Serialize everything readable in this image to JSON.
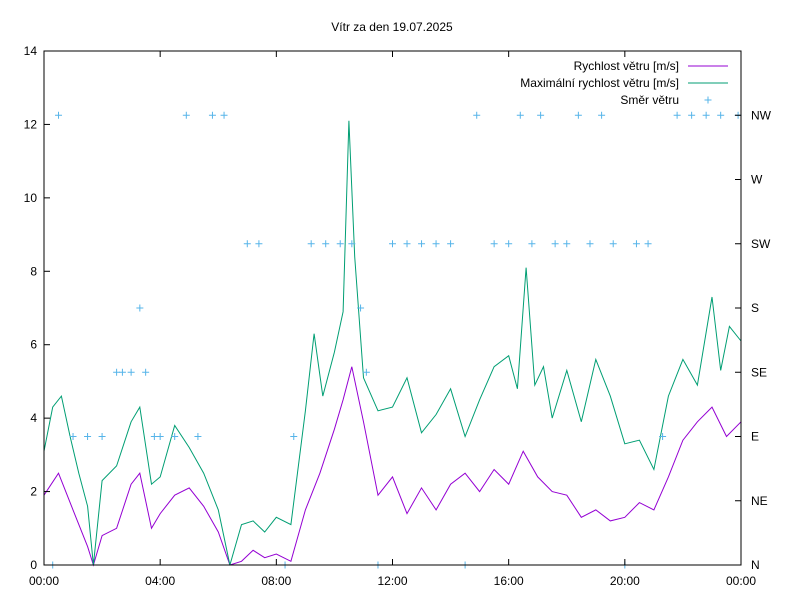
{
  "chart_data": {
    "type": "line",
    "title": "Vítr za den 19.07.2025",
    "xlabel": "",
    "ylabel": "",
    "x_tick_labels": [
      "00:00",
      "04:00",
      "08:00",
      "12:00",
      "16:00",
      "20:00",
      "00:00"
    ],
    "xlim_hours": [
      0,
      24
    ],
    "ylim": [
      0,
      14
    ],
    "y_ticks": [
      0,
      2,
      4,
      6,
      8,
      10,
      12,
      14
    ],
    "y2_tick_labels": [
      "N",
      "NE",
      "E",
      "SE",
      "S",
      "SW",
      "W",
      "NW"
    ],
    "grid": false,
    "legend_position": "top-right",
    "series": [
      {
        "name": "Rychlost větru [m/s]",
        "color": "#9400d3",
        "x_hours": [
          0.0,
          0.5,
          1.0,
          1.5,
          1.7,
          2.0,
          2.5,
          3.0,
          3.3,
          3.7,
          4.0,
          4.5,
          5.0,
          5.5,
          6.0,
          6.4,
          6.8,
          7.2,
          7.6,
          8.0,
          8.5,
          9.0,
          9.5,
          10.0,
          10.3,
          10.6,
          11.0,
          11.5,
          12.0,
          12.5,
          13.0,
          13.5,
          14.0,
          14.5,
          15.0,
          15.5,
          16.0,
          16.5,
          17.0,
          17.5,
          18.0,
          18.5,
          19.0,
          19.5,
          20.0,
          20.5,
          21.0,
          21.5,
          22.0,
          22.5,
          23.0,
          23.5,
          24.0
        ],
        "values": [
          1.9,
          2.5,
          1.5,
          0.5,
          0.0,
          0.8,
          1.0,
          2.2,
          2.5,
          1.0,
          1.4,
          1.9,
          2.1,
          1.6,
          0.9,
          0.0,
          0.1,
          0.4,
          0.2,
          0.3,
          0.1,
          1.5,
          2.5,
          3.7,
          4.5,
          5.4,
          3.9,
          1.9,
          2.4,
          1.4,
          2.1,
          1.5,
          2.2,
          2.5,
          2.0,
          2.6,
          2.2,
          3.1,
          2.4,
          2.0,
          1.9,
          1.3,
          1.5,
          1.2,
          1.3,
          1.7,
          1.5,
          2.4,
          3.4,
          3.9,
          4.3,
          3.5,
          3.9
        ]
      },
      {
        "name": "Maximální rychlost větru [m/s]",
        "color": "#009e73",
        "x_hours": [
          0.0,
          0.3,
          0.6,
          0.9,
          1.2,
          1.5,
          1.7,
          2.0,
          2.5,
          3.0,
          3.3,
          3.7,
          4.0,
          4.5,
          5.0,
          5.5,
          6.0,
          6.4,
          6.8,
          7.2,
          7.6,
          8.0,
          8.5,
          9.0,
          9.3,
          9.6,
          10.0,
          10.3,
          10.5,
          10.7,
          11.0,
          11.5,
          12.0,
          12.5,
          13.0,
          13.5,
          14.0,
          14.5,
          15.0,
          15.5,
          16.0,
          16.3,
          16.6,
          16.9,
          17.2,
          17.5,
          18.0,
          18.5,
          19.0,
          19.5,
          20.0,
          20.5,
          21.0,
          21.5,
          22.0,
          22.5,
          23.0,
          23.3,
          23.6,
          24.0
        ],
        "values": [
          3.1,
          4.3,
          4.6,
          3.5,
          2.5,
          1.6,
          0.0,
          2.3,
          2.7,
          3.9,
          4.3,
          2.2,
          2.4,
          3.8,
          3.2,
          2.5,
          1.5,
          0.0,
          1.1,
          1.2,
          0.9,
          1.3,
          1.1,
          4.2,
          6.3,
          4.6,
          5.8,
          6.9,
          12.1,
          8.4,
          5.1,
          4.2,
          4.3,
          5.1,
          3.6,
          4.1,
          4.8,
          3.5,
          4.5,
          5.4,
          5.7,
          4.8,
          8.1,
          4.9,
          5.4,
          4.0,
          5.3,
          3.9,
          5.6,
          4.6,
          3.3,
          3.4,
          2.6,
          4.6,
          5.6,
          4.9,
          7.3,
          5.3,
          6.5,
          6.1
        ]
      },
      {
        "name": "Směr větru",
        "color": "#56b4e9",
        "marker": "+",
        "direction_levels": [
          "N",
          "NE",
          "E",
          "SE",
          "S",
          "SW",
          "W",
          "NW"
        ],
        "x_hours": [
          0.3,
          0.5,
          1.0,
          1.5,
          2.0,
          2.5,
          2.7,
          3.0,
          3.3,
          3.5,
          3.8,
          4.0,
          4.5,
          4.9,
          5.3,
          5.8,
          6.2,
          7.0,
          7.4,
          8.3,
          8.6,
          9.2,
          9.7,
          10.2,
          10.6,
          10.9,
          11.1,
          11.5,
          12.0,
          12.5,
          13.0,
          13.5,
          14.0,
          14.5,
          14.9,
          15.5,
          16.0,
          16.4,
          16.8,
          17.1,
          17.6,
          18.0,
          18.4,
          18.8,
          19.2,
          19.6,
          20.0,
          20.4,
          20.8,
          21.3,
          21.8,
          22.3,
          22.8,
          23.3,
          23.9
        ],
        "values": [
          "N",
          "NW",
          "E",
          "E",
          "E",
          "SE",
          "SE",
          "SE",
          "S",
          "SE",
          "E",
          "E",
          "E",
          "NW",
          "E",
          "NW",
          "NW",
          "SW",
          "SW",
          "N",
          "E",
          "SW",
          "SW",
          "SW",
          "SW",
          "S",
          "SE",
          "N",
          "SW",
          "SW",
          "SW",
          "SW",
          "SW",
          "N",
          "NW",
          "SW",
          "SW",
          "NW",
          "SW",
          "NW",
          "SW",
          "SW",
          "NW",
          "SW",
          "NW",
          "SW",
          "N",
          "SW",
          "SW",
          "E",
          "NW",
          "NW",
          "NW",
          "NW",
          "NW"
        ]
      }
    ]
  }
}
